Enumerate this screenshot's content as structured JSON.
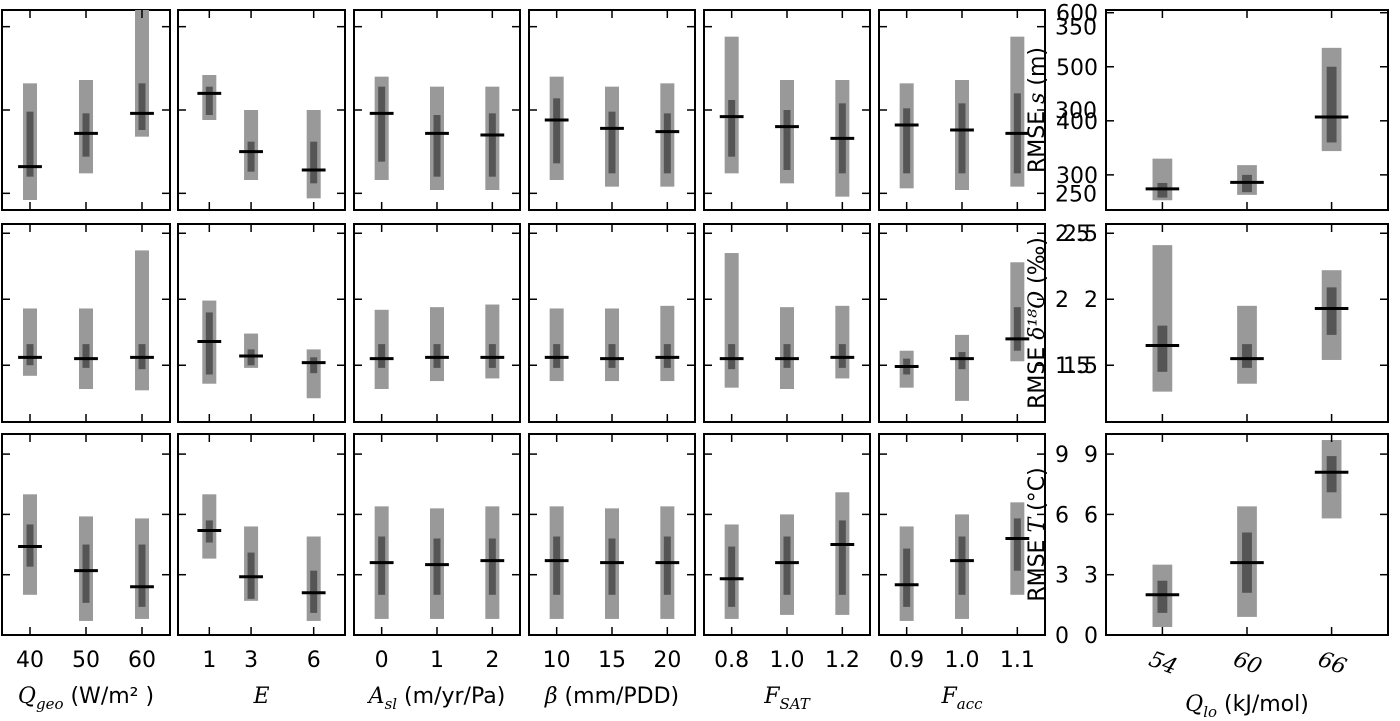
{
  "chart_data": {
    "type": "boxplot-grid",
    "rows": [
      {
        "metric": "s",
        "ylabel": {
          "prefix": "RMSE ",
          "math": "s",
          "suffix": " (m)"
        },
        "shared_ylim": [
          240,
          360
        ],
        "shared_yticks": [
          250,
          300,
          350
        ],
        "right_ylim": [
          235,
          605
        ],
        "right_yticks": [
          300,
          400,
          500,
          600
        ]
      },
      {
        "metric": "d18O",
        "ylabel": {
          "prefix": "RMSE ",
          "math": "δ¹⁸O",
          "suffix": " (‰)"
        },
        "shared_ylim": [
          1.07,
          2.57
        ],
        "shared_yticks": [
          1.5,
          2.0,
          2.5
        ],
        "right_ylim": [
          1.07,
          2.57
        ],
        "right_yticks": [
          1.5,
          2.0,
          2.5
        ]
      },
      {
        "metric": "T",
        "ylabel": {
          "prefix": "RMSE ",
          "math": "T",
          "suffix": " (°C)"
        },
        "shared_ylim": [
          0,
          10
        ],
        "shared_yticks": [
          0,
          3,
          6,
          9
        ],
        "right_ylim": [
          0,
          10
        ],
        "right_yticks": [
          0,
          3,
          6,
          9
        ]
      }
    ],
    "columns": [
      {
        "param": "Qgeo",
        "xlabel": {
          "math": "Q",
          "sub": "geo",
          "suffix": " (W/m² )"
        },
        "categories": [
          "40",
          "50",
          "60"
        ],
        "positions": [
          40,
          50,
          60
        ],
        "xlim": [
          35,
          65
        ],
        "boxes": [
          [
            {
              "outer": [
                246,
                316
              ],
              "inner": [
                260,
                299
              ],
              "median": 266
            },
            {
              "outer": [
                262,
                318
              ],
              "inner": [
                272,
                298
              ],
              "median": 286
            },
            {
              "outer": [
                284,
                360
              ],
              "inner": [
                288,
                316
              ],
              "median": 298
            }
          ],
          [
            {
              "outer": [
                1.42,
                1.93
              ],
              "inner": [
                1.5,
                1.66
              ],
              "median": 1.56
            },
            {
              "outer": [
                1.32,
                1.93
              ],
              "inner": [
                1.48,
                1.66
              ],
              "median": 1.55
            },
            {
              "outer": [
                1.31,
                2.37
              ],
              "inner": [
                1.47,
                1.66
              ],
              "median": 1.56
            }
          ],
          [
            {
              "outer": [
                2.0,
                7.0
              ],
              "inner": [
                3.4,
                5.5
              ],
              "median": 4.4
            },
            {
              "outer": [
                0.7,
                5.9
              ],
              "inner": [
                1.6,
                4.5
              ],
              "median": 3.2
            },
            {
              "outer": [
                0.8,
                5.8
              ],
              "inner": [
                1.4,
                4.5
              ],
              "median": 2.4
            }
          ]
        ]
      },
      {
        "param": "E",
        "xlabel": {
          "math": "E",
          "sub": "",
          "suffix": ""
        },
        "categories": [
          "1",
          "3",
          "6"
        ],
        "positions": [
          1,
          3,
          6
        ],
        "xlim": [
          -0.5,
          7.5
        ],
        "boxes": [
          [
            {
              "outer": [
                294,
                321
              ],
              "inner": [
                297,
                314
              ],
              "median": 310
            },
            {
              "outer": [
                258,
                300
              ],
              "inner": [
                263,
                281
              ],
              "median": 275
            },
            {
              "outer": [
                247,
                300
              ],
              "inner": [
                256,
                281
              ],
              "median": 264
            }
          ],
          [
            {
              "outer": [
                1.36,
                1.99
              ],
              "inner": [
                1.43,
                1.9
              ],
              "median": 1.68
            },
            {
              "outer": [
                1.48,
                1.74
              ],
              "inner": [
                1.5,
                1.62
              ],
              "median": 1.57
            },
            {
              "outer": [
                1.25,
                1.62
              ],
              "inner": [
                1.44,
                1.56
              ],
              "median": 1.52
            }
          ],
          [
            {
              "outer": [
                3.8,
                7.0
              ],
              "inner": [
                4.6,
                5.7
              ],
              "median": 5.2
            },
            {
              "outer": [
                1.7,
                5.4
              ],
              "inner": [
                1.8,
                4.1
              ],
              "median": 2.9
            },
            {
              "outer": [
                0.7,
                4.9
              ],
              "inner": [
                1.1,
                3.2
              ],
              "median": 2.1
            }
          ]
        ]
      },
      {
        "param": "Asl",
        "xlabel": {
          "math": "A",
          "sub": "sl",
          "suffix": " (m/yr/Pa)"
        },
        "categories": [
          "0",
          "1",
          "2"
        ],
        "positions": [
          0,
          1,
          2
        ],
        "xlim": [
          -0.5,
          2.5
        ],
        "boxes": [
          [
            {
              "outer": [
                258,
                320
              ],
              "inner": [
                269,
                314
              ],
              "median": 298
            },
            {
              "outer": [
                252,
                314
              ],
              "inner": [
                260,
                297
              ],
              "median": 286
            },
            {
              "outer": [
                252,
                314
              ],
              "inner": [
                260,
                298
              ],
              "median": 285
            }
          ],
          [
            {
              "outer": [
                1.32,
                1.92
              ],
              "inner": [
                1.48,
                1.66
              ],
              "median": 1.55
            },
            {
              "outer": [
                1.38,
                1.94
              ],
              "inner": [
                1.48,
                1.66
              ],
              "median": 1.56
            },
            {
              "outer": [
                1.4,
                1.96
              ],
              "inner": [
                1.48,
                1.66
              ],
              "median": 1.56
            }
          ],
          [
            {
              "outer": [
                0.8,
                6.4
              ],
              "inner": [
                2.0,
                4.9
              ],
              "median": 3.6
            },
            {
              "outer": [
                0.8,
                6.3
              ],
              "inner": [
                2.0,
                4.8
              ],
              "median": 3.5
            },
            {
              "outer": [
                0.8,
                6.4
              ],
              "inner": [
                2.0,
                4.8
              ],
              "median": 3.7
            }
          ]
        ]
      },
      {
        "param": "beta",
        "xlabel": {
          "math": "β",
          "sub": "",
          "suffix": " (mm/PDD)"
        },
        "categories": [
          "10",
          "15",
          "20"
        ],
        "positions": [
          10,
          15,
          20
        ],
        "xlim": [
          7.5,
          22.5
        ],
        "boxes": [
          [
            {
              "outer": [
                258,
                320
              ],
              "inner": [
                268,
                307
              ],
              "median": 294
            },
            {
              "outer": [
                254,
                314
              ],
              "inner": [
                262,
                299
              ],
              "median": 289
            },
            {
              "outer": [
                254,
                316
              ],
              "inner": [
                262,
                298
              ],
              "median": 287
            }
          ],
          [
            {
              "outer": [
                1.38,
                1.93
              ],
              "inner": [
                1.48,
                1.66
              ],
              "median": 1.56
            },
            {
              "outer": [
                1.38,
                1.93
              ],
              "inner": [
                1.48,
                1.66
              ],
              "median": 1.55
            },
            {
              "outer": [
                1.38,
                1.95
              ],
              "inner": [
                1.48,
                1.66
              ],
              "median": 1.56
            }
          ],
          [
            {
              "outer": [
                0.8,
                6.4
              ],
              "inner": [
                2.0,
                4.9
              ],
              "median": 3.7
            },
            {
              "outer": [
                0.8,
                6.3
              ],
              "inner": [
                2.0,
                4.8
              ],
              "median": 3.6
            },
            {
              "outer": [
                0.8,
                6.4
              ],
              "inner": [
                2.0,
                4.9
              ],
              "median": 3.6
            }
          ]
        ]
      },
      {
        "param": "FSAT",
        "xlabel": {
          "math": "F",
          "sub": "SAT",
          "suffix": ""
        },
        "categories": [
          "0.8",
          "1.0",
          "1.2"
        ],
        "positions": [
          0.8,
          1.0,
          1.2
        ],
        "xlim": [
          0.7,
          1.3
        ],
        "boxes": [
          [
            {
              "outer": [
                262,
                344
              ],
              "inner": [
                272,
                306
              ],
              "median": 296
            },
            {
              "outer": [
                256,
                318
              ],
              "inner": [
                264,
                300
              ],
              "median": 290
            },
            {
              "outer": [
                248,
                318
              ],
              "inner": [
                262,
                304
              ],
              "median": 283
            }
          ],
          [
            {
              "outer": [
                1.33,
                2.35
              ],
              "inner": [
                1.47,
                1.66
              ],
              "median": 1.55
            },
            {
              "outer": [
                1.32,
                1.94
              ],
              "inner": [
                1.48,
                1.66
              ],
              "median": 1.55
            },
            {
              "outer": [
                1.4,
                1.95
              ],
              "inner": [
                1.48,
                1.66
              ],
              "median": 1.56
            }
          ],
          [
            {
              "outer": [
                0.8,
                5.5
              ],
              "inner": [
                1.4,
                4.4
              ],
              "median": 2.8
            },
            {
              "outer": [
                1.0,
                6.0
              ],
              "inner": [
                2.0,
                4.9
              ],
              "median": 3.6
            },
            {
              "outer": [
                1.0,
                7.1
              ],
              "inner": [
                2.0,
                5.7
              ],
              "median": 4.5
            }
          ]
        ]
      },
      {
        "param": "Facc",
        "xlabel": {
          "math": "F",
          "sub": "acc",
          "suffix": ""
        },
        "categories": [
          "0.9",
          "1.0",
          "1.1"
        ],
        "positions": [
          0.9,
          1.0,
          1.1
        ],
        "xlim": [
          0.85,
          1.15
        ],
        "boxes": [
          [
            {
              "outer": [
                253,
                316
              ],
              "inner": [
                262,
                301
              ],
              "median": 291
            },
            {
              "outer": [
                252,
                318
              ],
              "inner": [
                262,
                304
              ],
              "median": 288
            },
            {
              "outer": [
                254,
                344
              ],
              "inner": [
                262,
                310
              ],
              "median": 286
            }
          ],
          [
            {
              "outer": [
                1.33,
                1.61
              ],
              "inner": [
                1.43,
                1.55
              ],
              "median": 1.49
            },
            {
              "outer": [
                1.23,
                1.73
              ],
              "inner": [
                1.47,
                1.6
              ],
              "median": 1.55
            },
            {
              "outer": [
                1.53,
                2.28
              ],
              "inner": [
                1.61,
                1.94
              ],
              "median": 1.7
            }
          ],
          [
            {
              "outer": [
                0.7,
                5.4
              ],
              "inner": [
                1.4,
                4.3
              ],
              "median": 2.5
            },
            {
              "outer": [
                0.8,
                6.0
              ],
              "inner": [
                2.0,
                4.9
              ],
              "median": 3.7
            },
            {
              "outer": [
                2.0,
                6.6
              ],
              "inner": [
                3.2,
                5.8
              ],
              "median": 4.8
            }
          ]
        ]
      }
    ],
    "right_column": {
      "param": "Qlo",
      "xlabel": {
        "math": "Q",
        "sub": "lo",
        "suffix": " (kJ/mol)"
      },
      "categories": [
        "54",
        "60",
        "66"
      ],
      "positions": [
        54,
        60,
        66
      ],
      "xlim": [
        50,
        70
      ],
      "boxes": [
        [
          {
            "outer": [
              253,
              330
            ],
            "inner": [
              258,
              285
            ],
            "median": 274
          },
          {
            "outer": [
              263,
              318
            ],
            "inner": [
              268,
              300
            ],
            "median": 286
          },
          {
            "outer": [
              344,
              535
            ],
            "inner": [
              360,
              500
            ],
            "median": 407
          }
        ],
        [
          {
            "outer": [
              1.3,
              2.41
            ],
            "inner": [
              1.45,
              1.8
            ],
            "median": 1.65
          },
          {
            "outer": [
              1.36,
              1.95
            ],
            "inner": [
              1.48,
              1.66
            ],
            "median": 1.55
          },
          {
            "outer": [
              1.54,
              2.22
            ],
            "inner": [
              1.73,
              2.09
            ],
            "median": 1.93
          }
        ],
        [
          {
            "outer": [
              0.4,
              3.5
            ],
            "inner": [
              1.1,
              2.7
            ],
            "median": 2.0
          },
          {
            "outer": [
              0.9,
              6.4
            ],
            "inner": [
              2.1,
              5.1
            ],
            "median": 3.6
          },
          {
            "outer": [
              5.8,
              9.7
            ],
            "inner": [
              7.1,
              8.9
            ],
            "median": 8.1
          }
        ]
      ]
    },
    "colors": {
      "outer": "#999999",
      "inner": "#555555",
      "median": "#000000",
      "frame": "#000000"
    },
    "legend": "none",
    "grid": false
  }
}
